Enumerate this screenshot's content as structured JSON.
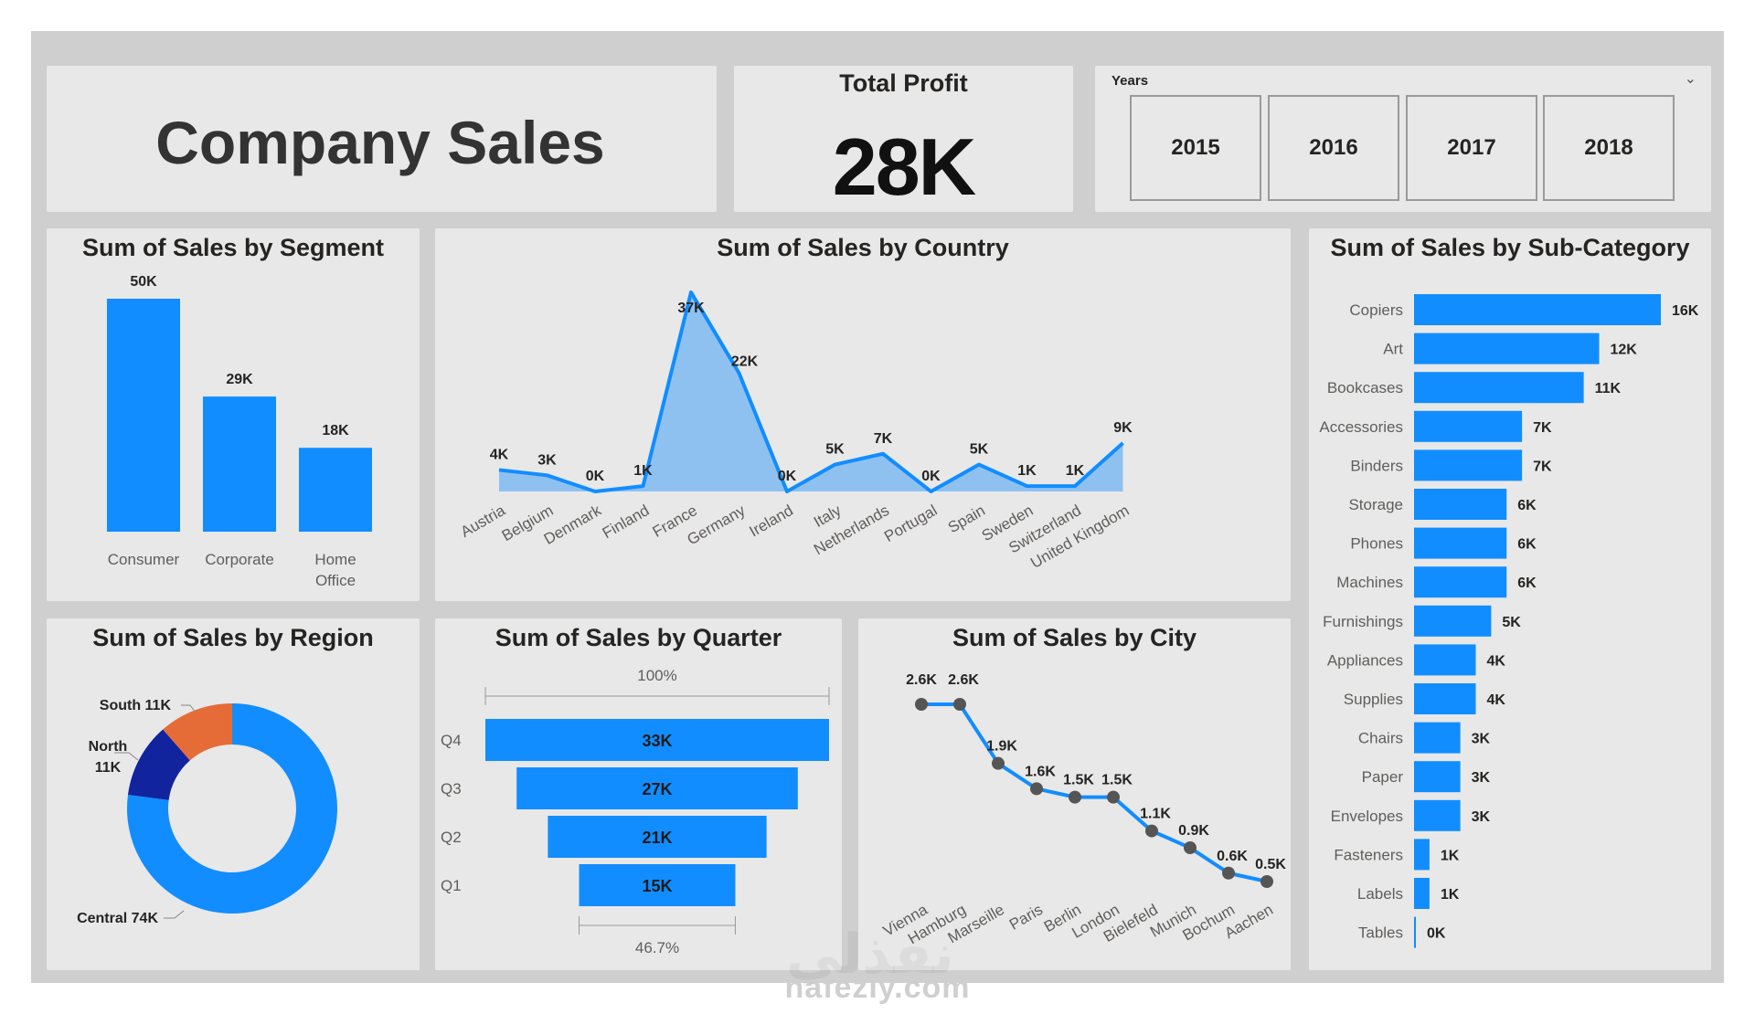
{
  "header": {
    "title": "Company Sales"
  },
  "kpi": {
    "label": "Total Profit",
    "value": "28K"
  },
  "slicer": {
    "label": "Years",
    "options": [
      "2015",
      "2016",
      "2017",
      "2018"
    ]
  },
  "colors": {
    "primary": "#118dff",
    "area_fill": "#8fc1f0",
    "dark_blue": "#12239e",
    "orange": "#e66c37",
    "marker": "#555555"
  },
  "watermark": {
    "text": "nafezly.com",
    "logo_text": "نفذلي"
  },
  "chart_data": [
    {
      "id": "segment",
      "type": "bar",
      "title": "Sum of Sales by Segment",
      "categories": [
        "Consumer",
        "Corporate",
        "Home Office"
      ],
      "values": [
        50,
        29,
        18
      ],
      "labels": [
        "50K",
        "29K",
        "18K"
      ],
      "unit": "K"
    },
    {
      "id": "country",
      "type": "area",
      "title": "Sum of Sales by Country",
      "categories": [
        "Austria",
        "Belgium",
        "Denmark",
        "Finland",
        "France",
        "Germany",
        "Ireland",
        "Italy",
        "Netherlands",
        "Portugal",
        "Spain",
        "Sweden",
        "Switzerland",
        "United Kingdom"
      ],
      "values": [
        4,
        3,
        0,
        1,
        37,
        22,
        0,
        5,
        7,
        0,
        5,
        1,
        1,
        9
      ],
      "labels": [
        "4K",
        "3K",
        "0K",
        "1K",
        "37K",
        "22K",
        "0K",
        "5K",
        "7K",
        "0K",
        "5K",
        "1K",
        "1K",
        "9K"
      ],
      "unit": "K"
    },
    {
      "id": "subcategory",
      "type": "bar",
      "orientation": "horizontal",
      "title": "Sum of Sales by Sub-Category",
      "categories": [
        "Copiers",
        "Art",
        "Bookcases",
        "Accessories",
        "Binders",
        "Storage",
        "Phones",
        "Machines",
        "Furnishings",
        "Appliances",
        "Supplies",
        "Chairs",
        "Paper",
        "Envelopes",
        "Fasteners",
        "Labels",
        "Tables"
      ],
      "values": [
        16,
        12,
        11,
        7,
        7,
        6,
        6,
        6,
        5,
        4,
        4,
        3,
        3,
        3,
        1,
        1,
        0
      ],
      "labels": [
        "16K",
        "12K",
        "11K",
        "7K",
        "7K",
        "6K",
        "6K",
        "6K",
        "5K",
        "4K",
        "4K",
        "3K",
        "3K",
        "3K",
        "1K",
        "1K",
        "0K"
      ],
      "unit": "K"
    },
    {
      "id": "region",
      "type": "pie",
      "donut": true,
      "title": "Sum of Sales by Region",
      "categories": [
        "Central",
        "North",
        "South"
      ],
      "values": [
        74,
        11,
        11
      ],
      "labels": [
        "Central 74K",
        "North 11K",
        "South 11K"
      ],
      "colors": [
        "#118dff",
        "#12239e",
        "#e66c37"
      ],
      "unit": "K"
    },
    {
      "id": "quarter",
      "type": "bar",
      "subtype": "funnel",
      "title": "Sum of Sales by Quarter",
      "categories": [
        "Q4",
        "Q3",
        "Q2",
        "Q1"
      ],
      "values": [
        33,
        27,
        21,
        15
      ],
      "labels": [
        "33K",
        "27K",
        "21K",
        "15K"
      ],
      "top_percent_label": "100%",
      "bottom_percent_label": "46.7%",
      "unit": "K"
    },
    {
      "id": "city",
      "type": "line",
      "title": "Sum of Sales by City",
      "categories": [
        "Vienna",
        "Hamburg",
        "Marseille",
        "Paris",
        "Berlin",
        "London",
        "Bielefeld",
        "Munich",
        "Bochum",
        "Aachen"
      ],
      "values": [
        2.6,
        2.6,
        1.9,
        1.6,
        1.5,
        1.5,
        1.1,
        0.9,
        0.6,
        0.5
      ],
      "labels": [
        "2.6K",
        "2.6K",
        "1.9K",
        "1.6K",
        "1.5K",
        "1.5K",
        "1.1K",
        "0.9K",
        "0.6K",
        "0.5K"
      ],
      "unit": "K"
    }
  ]
}
